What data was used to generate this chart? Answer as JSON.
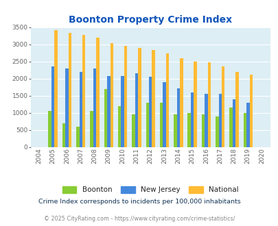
{
  "title": "Boonton Property Crime Index",
  "years": [
    2004,
    2005,
    2006,
    2007,
    2008,
    2009,
    2010,
    2011,
    2012,
    2013,
    2014,
    2015,
    2016,
    2017,
    2018,
    2019,
    2020
  ],
  "boonton": [
    0,
    1050,
    700,
    600,
    1050,
    1700,
    1200,
    950,
    1300,
    1300,
    950,
    1000,
    950,
    900,
    1150,
    1000,
    0
  ],
  "new_jersey": [
    0,
    2350,
    2300,
    2200,
    2300,
    2075,
    2075,
    2150,
    2050,
    1900,
    1720,
    1600,
    1550,
    1550,
    1400,
    1300,
    0
  ],
  "national": [
    0,
    3420,
    3340,
    3270,
    3200,
    3040,
    2950,
    2890,
    2840,
    2730,
    2590,
    2490,
    2470,
    2360,
    2200,
    2110,
    0
  ],
  "boonton_color": "#88cc33",
  "nj_color": "#4488dd",
  "national_color": "#ffbb33",
  "bg_color": "#ddeef5",
  "title_color": "#1155bb",
  "subtitle": "Crime Index corresponds to incidents per 100,000 inhabitants",
  "footer": "© 2025 CityRating.com - https://www.cityrating.com/crime-statistics/",
  "subtitle_color": "#113355",
  "footer_color": "#888888",
  "legend_color": "#222222",
  "ylim": [
    0,
    3500
  ],
  "yticks": [
    0,
    500,
    1000,
    1500,
    2000,
    2500,
    3000,
    3500
  ]
}
